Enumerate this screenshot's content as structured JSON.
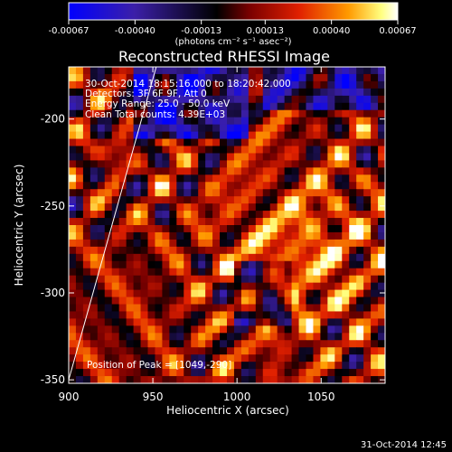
{
  "colorbar": {
    "tick_labels": [
      "-0.00067",
      "-0.00040",
      "-0.00013",
      "0.00013",
      "0.00040",
      "0.00067"
    ],
    "tick_values": [
      -0.00067,
      -0.0004,
      -0.00013,
      0.00013,
      0.0004,
      0.00067
    ],
    "range": [
      -0.00067,
      0.00067
    ],
    "units_label": "(photons cm⁻² s⁻¹ asec⁻²)",
    "colors": [
      "#0000ff",
      "#3b1fa8",
      "#000000",
      "#7a0000",
      "#e02000",
      "#ff9a00",
      "#ffff80",
      "#ffffff"
    ]
  },
  "chart_data": {
    "type": "heatmap",
    "title": "Reconstructed RHESSI Image",
    "xlabel": "Heliocentric X (arcsec)",
    "ylabel": "Heliocentric Y (arcsec)",
    "xlim": [
      900,
      1088
    ],
    "ylim": [
      -352,
      -170
    ],
    "x_ticks": [
      900,
      950,
      1000,
      1050
    ],
    "y_ticks": [
      -350,
      -300,
      -250,
      -200
    ],
    "limb_line": {
      "x": [
        900,
        952
      ],
      "y": [
        -350,
        -170
      ]
    },
    "annotations": {
      "time": "30-Oct-2014 18:15:16.000 to 18:20:42.000",
      "detectors": "Detectors: 3F 6F 9F, Att 0",
      "energy": "Energy Range: 25.0 - 50.0 keV",
      "clean": "Clean    Total counts: 4.39E+03",
      "peak": "Position of Peak = [1049,-290]"
    },
    "peak": {
      "x": 1049,
      "y": -290
    }
  },
  "footer": {
    "timestamp": "31-Oct-2014 12:45"
  }
}
